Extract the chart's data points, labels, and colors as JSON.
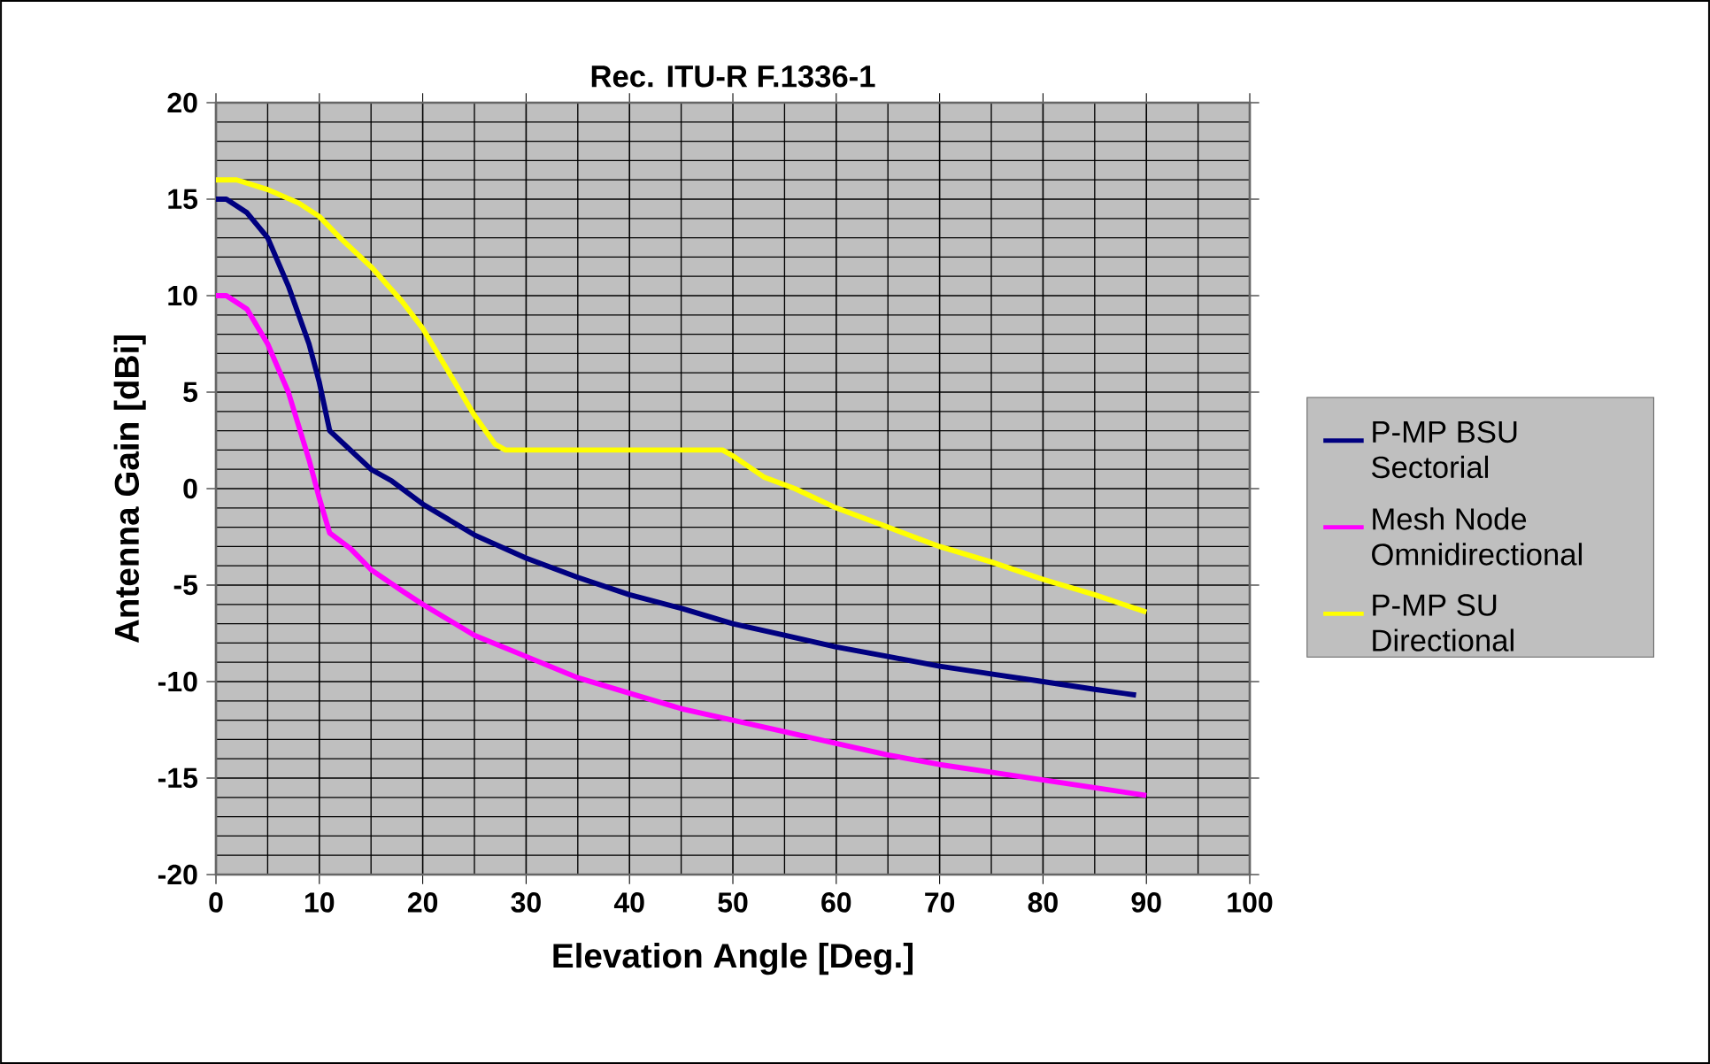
{
  "chart_data": {
    "type": "line",
    "title": "Rec. ITU-R F.1336-1",
    "xlabel": "Elevation Angle [Deg.]",
    "ylabel": "Antenna Gain [dBi]",
    "xlim": [
      0,
      100
    ],
    "xticks": [
      0,
      10,
      20,
      30,
      40,
      50,
      60,
      70,
      80,
      90,
      100
    ],
    "ylim": [
      -20,
      20
    ],
    "yticks": [
      -20,
      -15,
      -10,
      -5,
      0,
      5,
      10,
      15,
      20
    ],
    "grid": true,
    "legend": "right",
    "line_style": "solid",
    "series": [
      {
        "name": "P-MP BSU Sectorial",
        "color": "#000080",
        "x": [
          0,
          1,
          3,
          5,
          7,
          9,
          10,
          11,
          13,
          15,
          17,
          20,
          25,
          30,
          35,
          40,
          45,
          50,
          55,
          60,
          65,
          70,
          75,
          80,
          85,
          89
        ],
        "values": [
          15,
          15,
          14.3,
          13,
          10.5,
          7.5,
          5.5,
          3,
          2,
          1,
          0.4,
          -0.8,
          -2.4,
          -3.6,
          -4.6,
          -5.5,
          -6.2,
          -7,
          -7.6,
          -8.2,
          -8.7,
          -9.2,
          -9.6,
          -10,
          -10.4,
          -10.7
        ]
      },
      {
        "name": "Mesh Node Omnidirectional",
        "color": "#ff00ff",
        "x": [
          0,
          1,
          3,
          5,
          7,
          9,
          10,
          11,
          13,
          15,
          18,
          20,
          25,
          30,
          35,
          40,
          45,
          50,
          55,
          60,
          65,
          70,
          75,
          80,
          85,
          90
        ],
        "values": [
          10,
          10,
          9.3,
          7.5,
          5,
          1.5,
          -0.5,
          -2.3,
          -3.1,
          -4.2,
          -5.3,
          -6,
          -7.6,
          -8.7,
          -9.8,
          -10.6,
          -11.4,
          -12,
          -12.6,
          -13.2,
          -13.8,
          -14.3,
          -14.7,
          -15.1,
          -15.5,
          -15.9
        ]
      },
      {
        "name": "P-MP SU Directional",
        "color": "#ffff00",
        "x": [
          0,
          2,
          5,
          8,
          10,
          12,
          15,
          18,
          20,
          22,
          25,
          27,
          28,
          35,
          45,
          49,
          50,
          53,
          56,
          60,
          65,
          70,
          75,
          80,
          85,
          90
        ],
        "values": [
          16,
          16,
          15.5,
          14.8,
          14.1,
          13,
          11.5,
          9.7,
          8.3,
          6.5,
          3.8,
          2.3,
          2,
          2,
          2,
          2,
          1.7,
          0.6,
          0,
          -1,
          -2,
          -3,
          -3.8,
          -4.7,
          -5.5,
          -6.4
        ]
      }
    ]
  }
}
